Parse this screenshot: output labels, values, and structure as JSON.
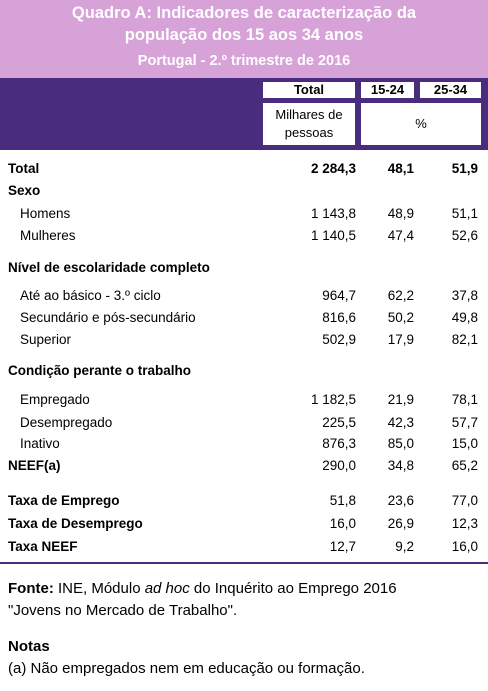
{
  "title": {
    "line1": "Quadro A: Indicadores de caracterização da",
    "line2": "população dos 15 aos 34 anos",
    "line3": "Portugal - 2.º trimestre de 2016"
  },
  "header": {
    "col_total": "Total",
    "col_1524": "15-24",
    "col_2534": "25-34",
    "unit_total_l1": "Milhares de",
    "unit_total_l2": "pessoas",
    "unit_pct": "%"
  },
  "rows": [
    {
      "label": "Total",
      "total": "2 284,3",
      "a": "48,1",
      "b": "51,9"
    },
    {
      "label": "Sexo"
    },
    {
      "label": "Homens",
      "total": "1 143,8",
      "a": "48,9",
      "b": "51,1"
    },
    {
      "label": "Mulheres",
      "total": "1 140,5",
      "a": "47,4",
      "b": "52,6"
    },
    {
      "label": "Nível de escolaridade completo"
    },
    {
      "label": "Até ao básico - 3.º ciclo",
      "total": "964,7",
      "a": "62,2",
      "b": "37,8"
    },
    {
      "label": "Secundário e pós-secundário",
      "total": "816,6",
      "a": "50,2",
      "b": "49,8"
    },
    {
      "label": "Superior",
      "total": "502,9",
      "a": "17,9",
      "b": "82,1"
    },
    {
      "label": "Condição perante o trabalho"
    },
    {
      "label": "Empregado",
      "total": "1 182,5",
      "a": "21,9",
      "b": "78,1"
    },
    {
      "label": "Desempregado",
      "total": "225,5",
      "a": "42,3",
      "b": "57,7"
    },
    {
      "label": "Inativo",
      "total": "876,3",
      "a": "85,0",
      "b": "15,0"
    },
    {
      "label": "NEEF(a)",
      "total": "290,0",
      "a": "34,8",
      "b": "65,2"
    },
    {
      "label": "Taxa de Emprego",
      "total": "51,8",
      "a": "23,6",
      "b": "77,0"
    },
    {
      "label": "Taxa de Desemprego",
      "total": "16,0",
      "a": "26,9",
      "b": "12,3"
    },
    {
      "label": "Taxa NEEF",
      "total": "12,7",
      "a": "9,2",
      "b": "16,0"
    }
  ],
  "footer": {
    "source_label": "Fonte:",
    "source_text_a": " INE, Módulo ",
    "source_italic": "ad hoc",
    "source_text_b": " do Inquérito ao Emprego 2016",
    "source_line2": "\"Jovens no Mercado de Trabalho\".",
    "notes_heading": "Notas",
    "note_a": "(a) Não empregados nem em educação ou formação."
  },
  "colors": {
    "title_bg": "#d7a2d8",
    "header_bg": "#4a2c7e"
  }
}
